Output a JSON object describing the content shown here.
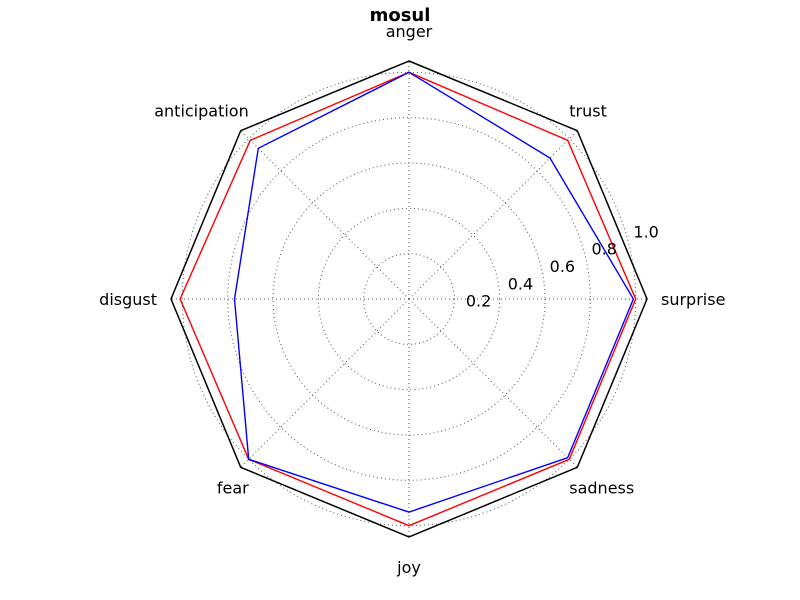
{
  "chart_data": {
    "type": "radar",
    "title": "mosul",
    "categories": [
      "anger",
      "trust",
      "surprise",
      "sadness",
      "joy",
      "fear",
      "disgust",
      "anticipation"
    ],
    "radial_ticks": [
      "0.2",
      "0.4",
      "0.6",
      "0.8",
      "1.0"
    ],
    "radial_tick_values": [
      0.2,
      0.4,
      0.6,
      0.8,
      1.0
    ],
    "rlim": [
      0,
      1.05
    ],
    "grid": true,
    "series": [
      {
        "values": [
          1.0,
          0.99,
          1.0,
          1.0,
          1.0,
          1.0,
          1.01,
          0.99
        ],
        "color": "#ff0000"
      },
      {
        "values": [
          1.0,
          0.88,
          0.99,
          0.99,
          0.94,
          1.0,
          0.77,
          0.94
        ],
        "color": "#0000ff"
      }
    ]
  }
}
